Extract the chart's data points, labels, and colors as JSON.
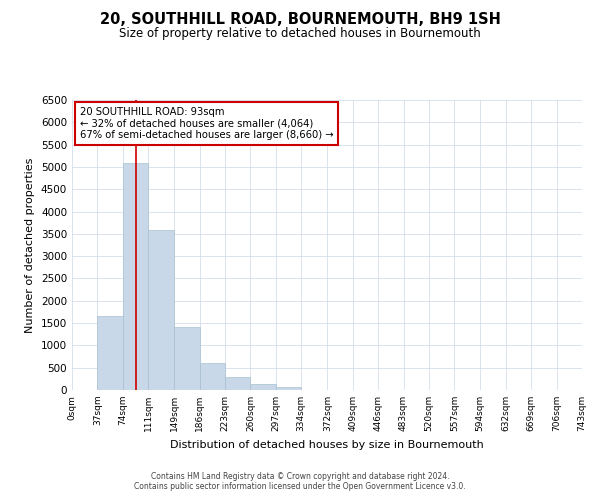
{
  "title": "20, SOUTHHILL ROAD, BOURNEMOUTH, BH9 1SH",
  "subtitle": "Size of property relative to detached houses in Bournemouth",
  "xlabel": "Distribution of detached houses by size in Bournemouth",
  "ylabel": "Number of detached properties",
  "bar_edges": [
    0,
    37,
    74,
    111,
    149,
    186,
    223,
    260,
    297,
    334,
    372,
    409,
    446,
    483,
    520,
    557,
    594,
    632,
    669,
    706,
    743
  ],
  "bar_heights": [
    0,
    1650,
    5080,
    3590,
    1420,
    615,
    300,
    145,
    60,
    0,
    0,
    0,
    0,
    0,
    0,
    0,
    0,
    0,
    0,
    0
  ],
  "bar_color": "#c8d8e8",
  "bar_edgecolor": "#a8c0d0",
  "ylim": [
    0,
    6500
  ],
  "yticks": [
    0,
    500,
    1000,
    1500,
    2000,
    2500,
    3000,
    3500,
    4000,
    4500,
    5000,
    5500,
    6000,
    6500
  ],
  "property_line_x": 93,
  "property_line_color": "#cc0000",
  "annotation_title": "20 SOUTHHILL ROAD: 93sqm",
  "annotation_line1": "← 32% of detached houses are smaller (4,064)",
  "annotation_line2": "67% of semi-detached houses are larger (8,660) →",
  "annotation_box_color": "#cc0000",
  "footer_line1": "Contains HM Land Registry data © Crown copyright and database right 2024.",
  "footer_line2": "Contains public sector information licensed under the Open Government Licence v3.0.",
  "background_color": "#ffffff",
  "grid_color": "#ccd8e4"
}
